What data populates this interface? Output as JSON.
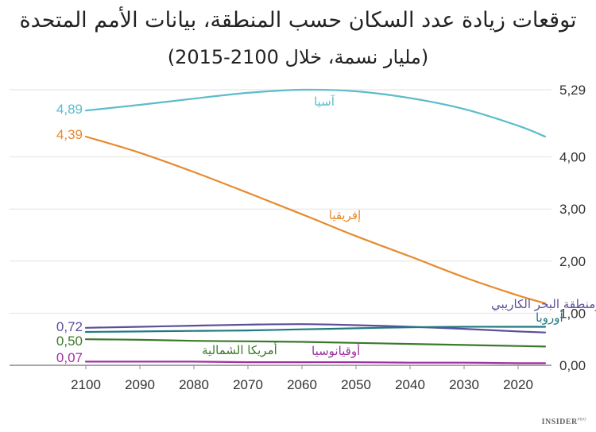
{
  "title": "توقعات زيادة عدد السكان حسب المنطقة، بيانات الأمم المتحدة",
  "subtitle": "(مليار نسمة، خلال 2100-2015)",
  "brand": {
    "name": "INSIDER",
    "suffix": "PRO"
  },
  "chart_data": {
    "type": "line",
    "title": "توقعات زيادة عدد السكان حسب المنطقة، بيانات الأمم المتحدة",
    "subtitle": "(مليار نسمة، خلال 2100-2015)",
    "x_direction": "reversed",
    "x_ticks": [
      "2100",
      "2090",
      "2080",
      "2070",
      "2060",
      "2050",
      "2040",
      "2030",
      "2020"
    ],
    "y_ticks": [
      "0,00",
      "1,00",
      "2,00",
      "3,00",
      "4,00",
      "5,29"
    ],
    "xlim": [
      2015,
      2100
    ],
    "ylim": [
      0,
      5.29
    ],
    "grid": true,
    "x": [
      2015,
      2020,
      2030,
      2040,
      2050,
      2060,
      2070,
      2080,
      2090,
      2100
    ],
    "series": [
      {
        "name": "آسيا",
        "color": "#5bbccb",
        "start_label": "4,89",
        "values": [
          4.39,
          4.6,
          4.92,
          5.13,
          5.26,
          5.29,
          5.23,
          5.12,
          5.0,
          4.89
        ]
      },
      {
        "name": "إفريقيا",
        "color": "#e68a2e",
        "start_label": "4,39",
        "values": [
          1.19,
          1.34,
          1.69,
          2.09,
          2.48,
          2.9,
          3.31,
          3.71,
          4.08,
          4.39
        ]
      },
      {
        "name": "أمريكا اللاتينية ومنطقة البحر الكاريبي",
        "color": "#5a4f9a",
        "start_label": "0,72",
        "values": [
          0.63,
          0.65,
          0.7,
          0.74,
          0.77,
          0.79,
          0.78,
          0.76,
          0.74,
          0.72
        ]
      },
      {
        "name": "أوروبا",
        "color": "#1f7a80",
        "start_label": "",
        "values": [
          0.74,
          0.74,
          0.74,
          0.73,
          0.71,
          0.69,
          0.67,
          0.66,
          0.65,
          0.64
        ]
      },
      {
        "name": "أمريكا الشمالية",
        "color": "#3a7a2a",
        "start_label": "0,50",
        "values": [
          0.36,
          0.37,
          0.39,
          0.41,
          0.43,
          0.45,
          0.46,
          0.47,
          0.49,
          0.5
        ]
      },
      {
        "name": "أوقيانوسيا",
        "color": "#a030a0",
        "start_label": "0,07",
        "values": [
          0.04,
          0.04,
          0.05,
          0.05,
          0.06,
          0.06,
          0.06,
          0.07,
          0.07,
          0.07
        ]
      }
    ]
  }
}
